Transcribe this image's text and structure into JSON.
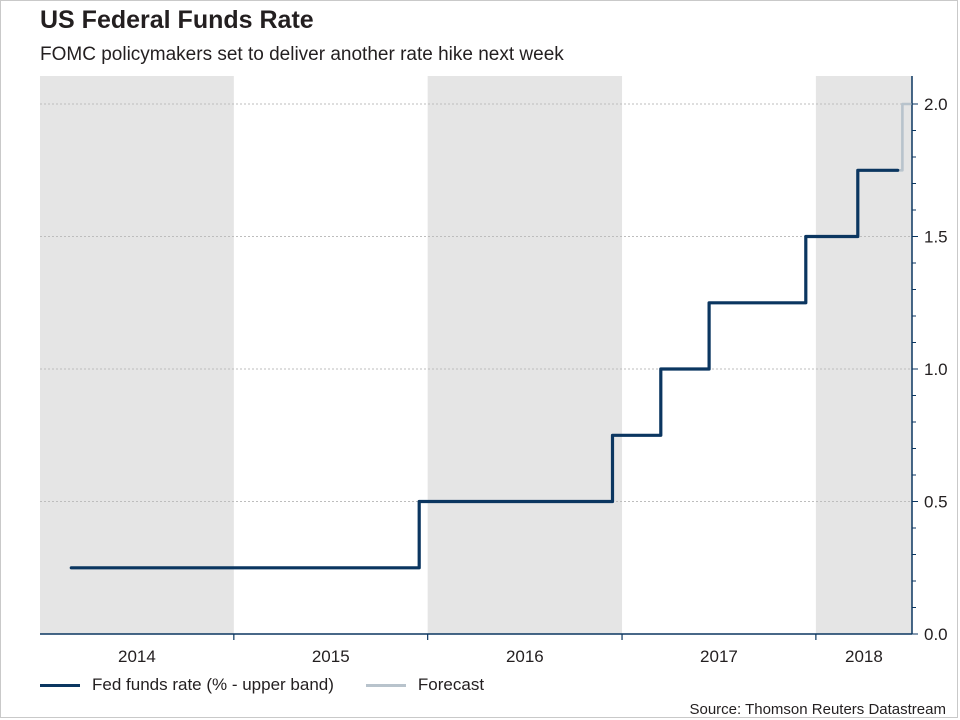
{
  "chart_title": "US Federal Funds Rate",
  "chart_subtitle": "FOMC policymakers set to deliver another rate hike next week",
  "source": "Source: Thomson Reuters Datastream",
  "colors": {
    "series": "#0b3660",
    "forecast": "#b8c3cc",
    "shading": "#e5e5e5",
    "grid": "#bdbdbd",
    "axis": "#0b3660"
  },
  "legend": [
    {
      "label": "Fed funds rate (% - upper band)",
      "color": "#0b3660"
    },
    {
      "label": "Forecast",
      "color": "#b8c3cc"
    }
  ],
  "chart_data": {
    "type": "line",
    "title": "US Federal Funds Rate",
    "subtitle": "FOMC policymakers set to deliver another rate hike next week",
    "y_axis_side": "right",
    "ylim": [
      0,
      2.0
    ],
    "yticks": [
      0.0,
      0.5,
      1.0,
      1.5,
      2.0
    ],
    "ytick_labels": [
      "0.0",
      "0.5",
      "1.0",
      "1.5",
      "2.0"
    ],
    "xlim": [
      "2014-01-01",
      "2018-07-01"
    ],
    "x_tick_labels": [
      "2014",
      "2015",
      "2016",
      "2017",
      "2018"
    ],
    "shaded_years": [
      "2014",
      "2016",
      "2018"
    ],
    "grid": "horizontal dotted",
    "legend_position": "bottom-left",
    "series": [
      {
        "name": "Fed funds rate (% - upper band)",
        "step": true,
        "points": [
          [
            "2014-03-01",
            0.25
          ],
          [
            "2015-12-16",
            0.25
          ],
          [
            "2015-12-16",
            0.5
          ],
          [
            "2016-12-14",
            0.5
          ],
          [
            "2016-12-14",
            0.75
          ],
          [
            "2017-03-15",
            0.75
          ],
          [
            "2017-03-15",
            1.0
          ],
          [
            "2017-06-14",
            1.0
          ],
          [
            "2017-06-14",
            1.25
          ],
          [
            "2017-12-13",
            1.25
          ],
          [
            "2017-12-13",
            1.5
          ],
          [
            "2018-03-21",
            1.5
          ],
          [
            "2018-03-21",
            1.75
          ],
          [
            "2018-06-04",
            1.75
          ]
        ]
      },
      {
        "name": "Forecast",
        "step": true,
        "points": [
          [
            "2018-06-04",
            1.75
          ],
          [
            "2018-06-13",
            1.75
          ],
          [
            "2018-06-13",
            2.0
          ],
          [
            "2018-06-28",
            2.0
          ]
        ]
      }
    ]
  }
}
